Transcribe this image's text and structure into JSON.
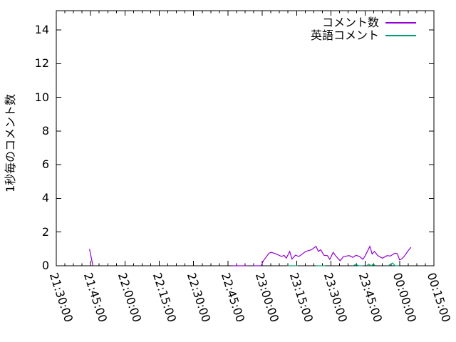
{
  "chart_data": {
    "type": "line",
    "title": "",
    "xlabel": "",
    "ylabel": "1秒毎のコメント数",
    "grid": false,
    "legend_position": "top-right-inside",
    "x_axis": {
      "kind": "time",
      "start": "21:30:00",
      "end": "00:15:00",
      "major_tick_interval_minutes": 15,
      "minor_ticks_per_interval": 3,
      "tick_labels": [
        "21:30:00",
        "21:45:00",
        "22:00:00",
        "22:15:00",
        "22:30:00",
        "22:45:00",
        "23:00:00",
        "23:15:00",
        "23:30:00",
        "23:45:00",
        "00:00:00",
        "00:15:00"
      ],
      "tick_label_rotation_deg": 72
    },
    "y_axis": {
      "min": 0,
      "max": 15.1,
      "tick_step": 2,
      "tick_labels": [
        "0",
        "2",
        "4",
        "6",
        "8",
        "10",
        "12",
        "14"
      ]
    },
    "legend": [
      {
        "label": "コメント数",
        "color": "#9400d3"
      },
      {
        "label": "英語コメント",
        "color": "#009e73"
      }
    ],
    "series": [
      {
        "name": "コメント数",
        "color": "#9400d3",
        "segments": [
          [
            [
              "21:44:30",
              1.0
            ],
            [
              "21:46:00",
              0
            ]
          ],
          [
            [
              "22:47:00",
              0
            ],
            [
              "22:53:30",
              0
            ]
          ],
          [
            [
              "22:56:00",
              0
            ],
            [
              "22:59:30",
              0
            ],
            [
              "23:00:30",
              0.3
            ],
            [
              "23:03:00",
              0.75
            ],
            [
              "23:04:00",
              0.8
            ],
            [
              "23:06:00",
              0.7
            ],
            [
              "23:08:30",
              0.55
            ],
            [
              "23:09:30",
              0.62
            ],
            [
              "23:10:30",
              0.45
            ],
            [
              "23:12:00",
              0.85
            ],
            [
              "23:13:00",
              0.4
            ],
            [
              "23:14:30",
              0.63
            ],
            [
              "23:16:00",
              0.55
            ],
            [
              "23:19:00",
              0.85
            ],
            [
              "23:21:30",
              0.95
            ],
            [
              "23:23:30",
              1.15
            ],
            [
              "23:24:30",
              0.85
            ],
            [
              "23:25:30",
              0.95
            ],
            [
              "23:27:00",
              0.62
            ],
            [
              "23:28:30",
              0.6
            ],
            [
              "23:29:30",
              0.38
            ],
            [
              "23:31:00",
              0.8
            ],
            [
              "23:32:00",
              0.6
            ],
            [
              "23:33:00",
              0.45
            ],
            [
              "23:34:00",
              0.3
            ],
            [
              "23:35:30",
              0.55
            ],
            [
              "23:38:00",
              0.6
            ],
            [
              "23:39:30",
              0.5
            ],
            [
              "23:41:00",
              0.62
            ],
            [
              "23:42:30",
              0.55
            ],
            [
              "23:44:00",
              0.38
            ],
            [
              "23:45:00",
              0.6
            ],
            [
              "23:47:00",
              1.15
            ],
            [
              "23:48:00",
              0.7
            ],
            [
              "23:49:00",
              0.85
            ],
            [
              "23:50:30",
              0.6
            ],
            [
              "23:52:30",
              0.45
            ],
            [
              "23:54:30",
              0.6
            ],
            [
              "23:56:00",
              0.58
            ],
            [
              "23:58:00",
              0.75
            ],
            [
              "23:59:00",
              0.72
            ],
            [
              "00:00:00",
              0.35
            ],
            [
              "00:01:00",
              0.42
            ],
            [
              "00:02:00",
              0.55
            ],
            [
              "00:03:30",
              0.85
            ],
            [
              "00:05:00",
              1.1
            ]
          ]
        ]
      },
      {
        "name": "英語コメント",
        "color": "#009e73",
        "segments": [
          [
            [
              "23:11:00",
              0
            ],
            [
              "23:15:30",
              0
            ]
          ],
          [
            [
              "23:23:30",
              0
            ],
            [
              "23:27:30",
              0
            ]
          ],
          [
            [
              "23:39:30",
              0
            ],
            [
              "23:41:00",
              0.08
            ],
            [
              "23:42:00",
              0
            ],
            [
              "23:44:00",
              0
            ]
          ],
          [
            [
              "23:45:40",
              0
            ],
            [
              "23:46:30",
              0.1
            ],
            [
              "23:47:30",
              0
            ],
            [
              "23:48:30",
              0.1
            ],
            [
              "23:49:30",
              0
            ]
          ],
          [
            [
              "23:55:00",
              0
            ],
            [
              "23:57:00",
              0.17
            ],
            [
              "23:58:00",
              0
            ],
            [
              "23:59:45",
              0
            ]
          ]
        ]
      }
    ]
  }
}
